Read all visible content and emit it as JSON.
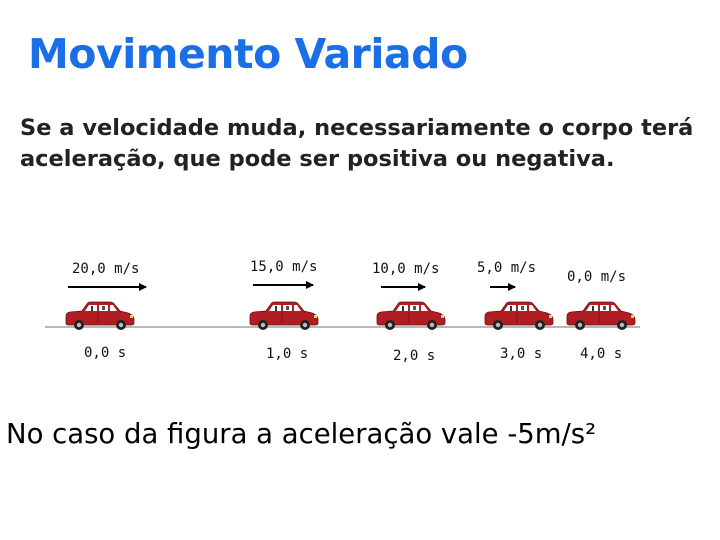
{
  "title": "Movimento Variado",
  "intro": "Se a velocidade muda, necessariamente o corpo terá aceleração, que pode ser positiva ou negativa.",
  "diagram": {
    "speeds": [
      "20,0 m/s",
      "15,0 m/s",
      "10,0 m/s",
      "5,0 m/s",
      "0,0 m/s"
    ],
    "times": [
      "0,0 s",
      "1,0 s",
      "2,0 s",
      "3,0 s",
      "4,0 s"
    ]
  },
  "conclusion": "No caso da figura a aceleração vale -5m/s²",
  "colors": {
    "title": "#1a6fe6",
    "car_body": "#b01e24",
    "car_dark": "#7a1015",
    "road": "#b8b8b8"
  }
}
